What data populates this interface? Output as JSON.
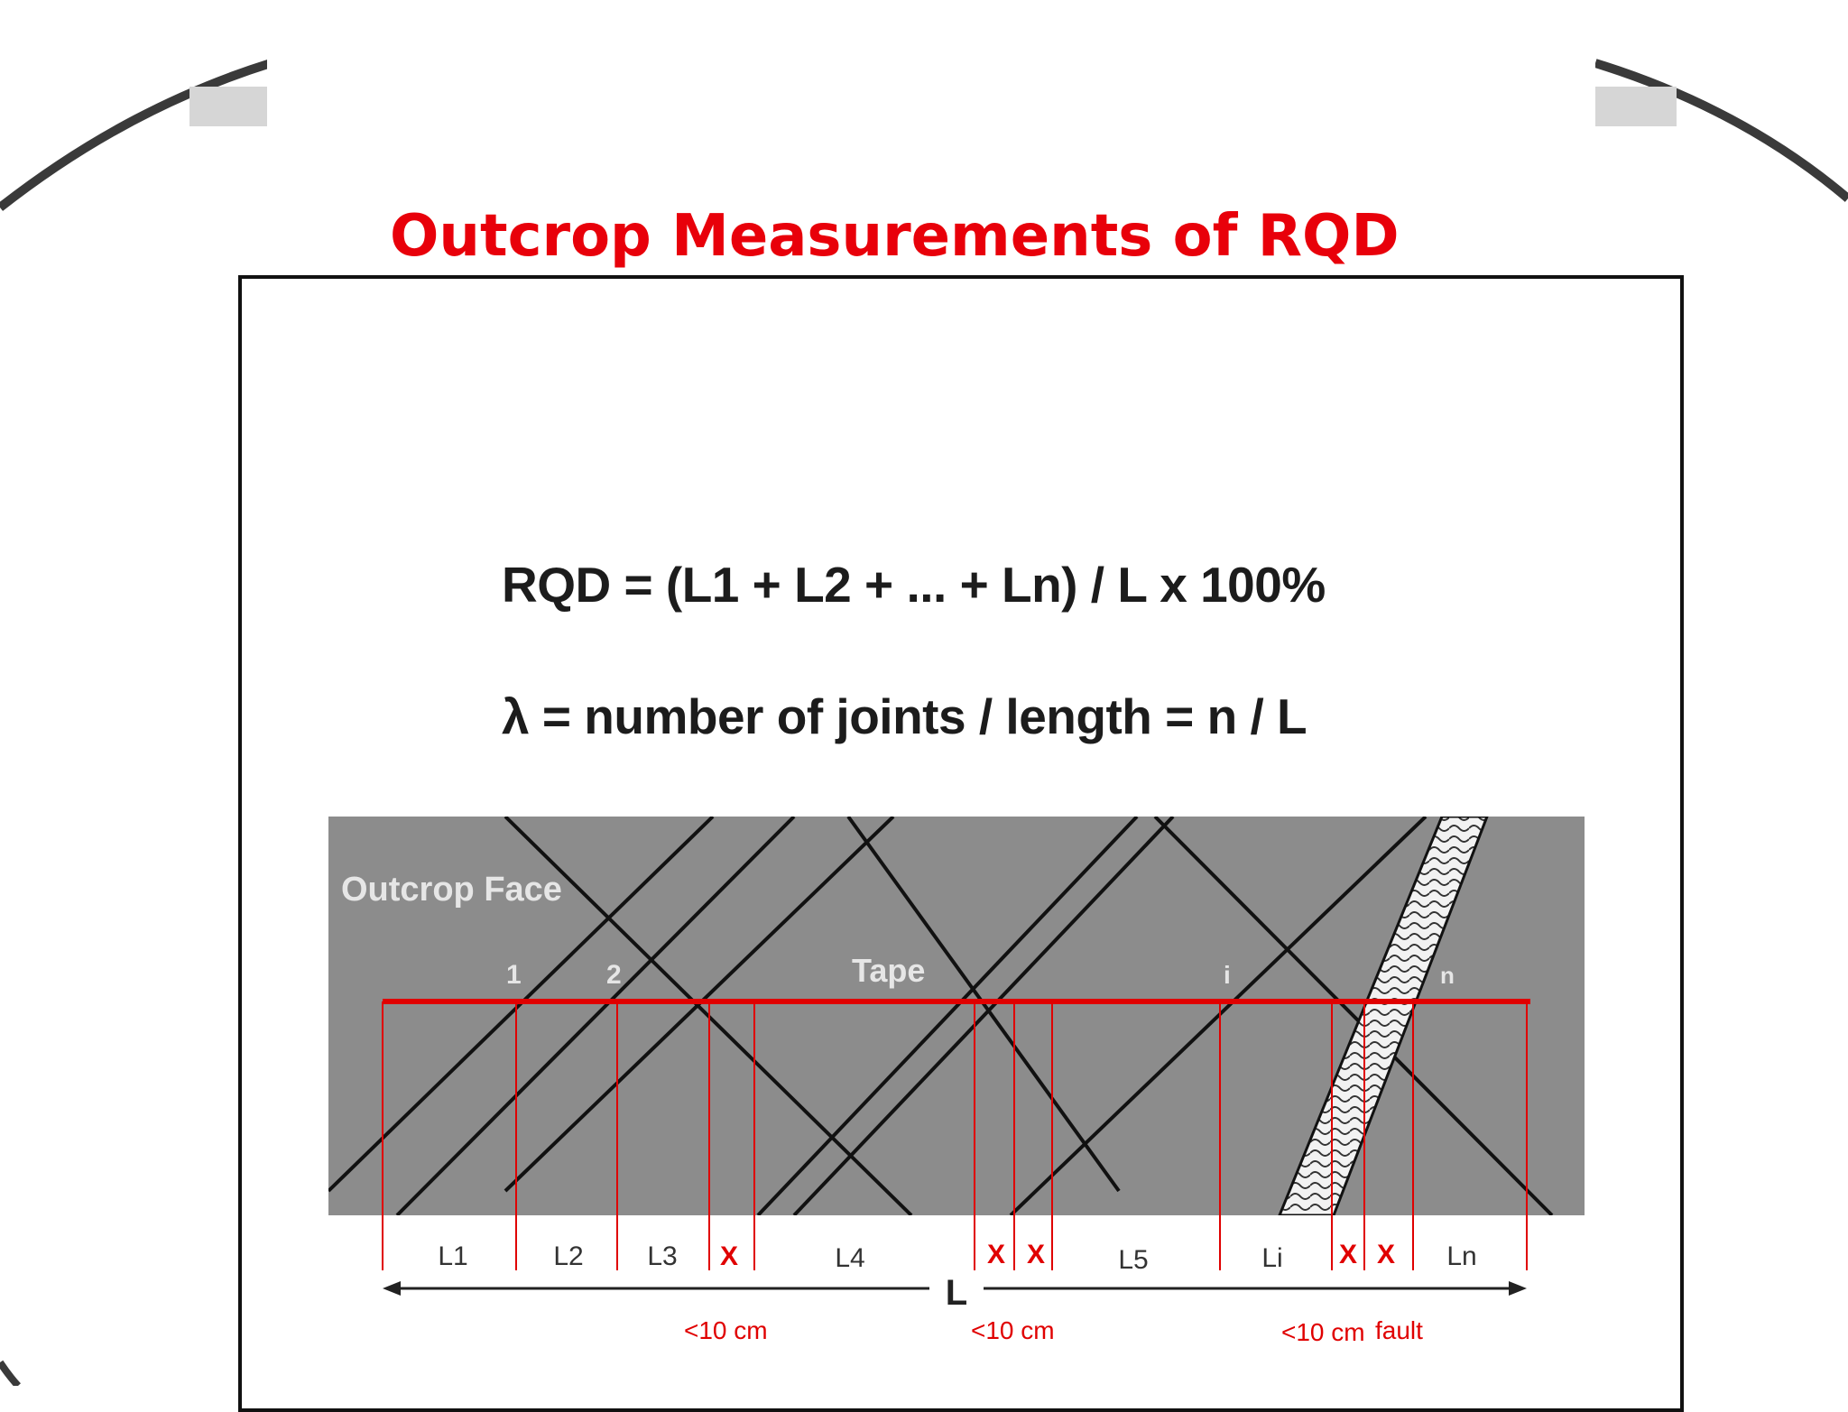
{
  "slide": {
    "title": "Outcrop Measurements of RQD",
    "title_color": "#e8000a"
  },
  "formulas": {
    "rqd": "RQD = (L1 + L2 + ... + Ln) / L  x 100%",
    "lambda": "λ = number of joints / length = n / L"
  },
  "diagram": {
    "outcrop_label": "Outcrop Face",
    "tape_label": "Tape",
    "joint_labels": [
      "1",
      "2",
      "i",
      "n"
    ],
    "segment_labels": [
      "L1",
      "L2",
      "L3",
      "X",
      "L4",
      "X",
      "X",
      "L5",
      "Li",
      "X",
      "X",
      "Ln"
    ],
    "total_length_label": "L",
    "small_piece_notes": [
      "<10 cm",
      "<10 cm",
      "<10 cm"
    ],
    "fault_label": "fault",
    "colors": {
      "outcrop_fill": "#8c8c8c",
      "tape": "#e00000",
      "joint_lines": "#111111",
      "x_marks": "#e00000",
      "segment_text": "#333333"
    }
  }
}
